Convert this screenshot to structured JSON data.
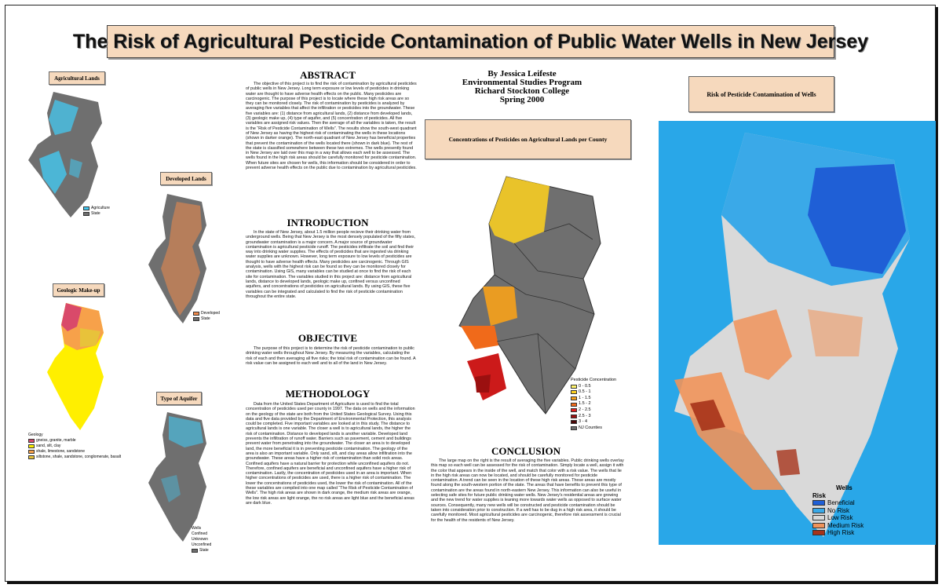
{
  "title": "The Risk of Agricultural Pesticide Contamination of Public Water Wells in New Jersey",
  "author": {
    "line1": "By Jessica Leifeste",
    "line2": "Environmental Studies Program",
    "line3": "Richard Stockton College",
    "line4": "Spring 2000"
  },
  "maps": {
    "agricultural": {
      "label": "Agricultural Lands",
      "legend": [
        "Agriculture",
        "State"
      ]
    },
    "developed": {
      "label": "Developed Lands",
      "legend": [
        "Developed",
        "State"
      ]
    },
    "geologic": {
      "label": "Geologic Make-up",
      "legend_title": "Geology",
      "legend": [
        "gneiss, granite, marble",
        "sand, silt, clay",
        "shale, limestone, sandstone",
        "siltstone, shale, sandstone, conglomerate, basalt"
      ]
    },
    "aquifer": {
      "label": "Type of Aquifer",
      "legend_title": "Wells",
      "legend": [
        "Confined",
        "Unknown",
        "Unconfined",
        "State"
      ]
    },
    "concentration": {
      "label": "Concentrations of Pesticides on Agricultural Lands per County",
      "legend_title": "Pesticide Concentration",
      "legend": [
        "0 - 0.5",
        "0.5 - 1",
        "1 - 1.5",
        "1.5 - 2",
        "2 - 2.5",
        "2.5 - 3",
        "3 - 4",
        "NJ Counties"
      ]
    },
    "risk": {
      "label": "Risk of Pesticide Contamination of Wells",
      "legend_wells": "Wells",
      "legend_title": "Risk",
      "legend": [
        "Beneficial",
        "No Risk",
        "Low Risk",
        "Medium Risk",
        "High Risk"
      ]
    }
  },
  "colors": {
    "state_gray": "#6f6f6f",
    "agri_cyan": "#44c8f0",
    "developed_orange": "#f08a4b",
    "beneficial": "#1f5fd6",
    "no_risk": "#3aa9e8",
    "low_risk": "#d9d9d9",
    "medium_risk": "#f0935a",
    "high_risk": "#a6331a",
    "label_bg": "#f6d9bd",
    "risk_bg": "#29a7e8"
  },
  "sections": {
    "abstract": {
      "heading": "ABSTRACT",
      "text": "The objective of this project is to find the risk of contamination by agricultural pesticides of public wells in New Jersey. Long term exposure or low levels of pesticides in drinking water are thought to have adverse health effects on the public. Many pesticides are carcinogenic. The purpose of this project is to locate where these high risk areas are so they can be monitored closely. The risk of contamination by pesticides is analyzed by averaging five variables that affect the infiltration or pesticides into the groundwater. These five variables are: (1) distance from agricultural lands, (2) distance from developed lands, (3) geologic make up, (4) type of aquifer, and (5) concentration of pesticides. All five variables are assigned risk values. Then the average of all the variables is taken, the result is the “Risk of Pesticide Contamination of Wells”. The results show the south-west quadrant of New Jersey as having the highest risk of contaminating the wells in these locations (shown in darker orange). The north-east quadrant of New Jersey has beneficial properties that prevent the contamination of the wells located there (shown in dark blue). The rest of the state is classified somewhere between these two extremes. The wells presently found in New Jersey are laid over this map in a way that allows each well to be assessed. The wells found in the high risk areas should be carefully monitored for pesticide contamination. When future sites are chosen for wells, this information should be considered in order to prevent adverse health effects on the public due to contamination by agricultural pesticides."
    },
    "introduction": {
      "heading": "INTRODUCTION",
      "text": "In the state of New Jersey, about 1.5 million people recieve their drinking water from underground wells. Being that New Jersey is the most densely populated of the fifty states, groundwater contamination is a major concern. A major source of groundwater contamination is agricultural pesticide runoff. The pesticides infiltrate the soil and find their way into drinking water supplies. The effects of pesticides that are ingested via drinking water supplies are unknown. However, long term exposure to low levels of pesticides are thought to have adverse health effects. Many pesticides are carcinogenic. Through GIS analysis, wells with the highest risk can be found so they can be monitored closely for contamination. Using GIS, many variables can be studied at once to find the risk of each site for contamination. The variables studied in this project are: distance from agricultural lands, distance to developed lands, geologic make up, confined versus unconfined aquifers, and concentrations of pesticides on agricultural lands. By using GIS, these five variables can be integrated and calculated to find the risk of pesticide contamination throughout the entire state."
    },
    "objective": {
      "heading": "OBJECTIVE",
      "text": "The purpose of this project is to determine the risk of pesticide contamination to public drinking water wells throughout New Jersey. By measuring the variables, calculating the risk of each and then averaging all five risks; the total risk of contamination can be found. A risk value can be assigned to each well and to all of the land in New Jersey."
    },
    "methodology": {
      "heading": "METHODOLOGY",
      "text": "Data from the United States Department of Agriculture is used to find the total concentration of pesticides used per county in 1997. The data on wells and the information on the geology of the state are both from the United States Geological Survey. Using this data and five data provided by the Department of Environmental Protection, this analysis could be completed. Five important variables are looked at in this study. The distance to agricultural lands is one variable. The closer a well is to agricultural lands, the higher the risk of contamination. Distance to developed lands is another variable. Developed land prevents the infiltration of runoff water. Barriers such as pavement, cement and buildings prevent water from penetrating into the groundwater. The closer an area is to developed land, the more beneficial it is in preventing pesticide contamination. The geology of the area is also an important variable. Only sand, silt, and clay areas allow infiltration into the groundwater. These areas have a higher risk of contamination than solid rock areas. Confined aquifers have a natural barrier for protection while unconfined aquifers do not. Therefore, confined aquifers are beneficial and unconfined aquifers have a higher risk of contamination. Lastly, the concentration of pesticides used in an area is important. When higher concentrations of pesticides are used, there is a higher risk of contamination. The lower the concentrations of pesticides used, the lower the risk of contamination. All of the these variables are compiled into one map called “The Risk of Pesticide Contamination of Wells”. The high risk areas are shown in dark orange, the medium risk areas are orange, the low risk areas are light orange, the no risk areas are light blue and the beneficial areas are dark blue."
    },
    "conclusion": {
      "heading": "CONCLUSION",
      "text": "The large map on the right is the result of averaging the five variables. Public drinking wells overlay this map so each well can be assessed for the risk of contamination. Simply locate a well, assign it with the color that appears in the inside of the well, and match that color with a risk value. The wells that lie in the high risk areas can now be located, and should be carefully monitored for pesticide contamination. A trend can be seen in the location of these high risk areas. These areas are mostly found along the south-western portion of the state. The areas that have benefits to prevent this type of contamination are the areas found in north-eastern New Jersey. This information can also be useful in selecting safe sites for future public drinking water wells. New Jersey's residential areas are growing and the new trend for water supplies is leaning more towards water wells as opposed to surface water sources. Consequently, many new wells will be constructed and pesticide contamination should be taken into consideration prior to construction. If a well has to be dug in a high risk area, it should be carefully monitored. Most agricultural pesticides are carcinogenic, therefore risk assessment is crucial for the health of the residents of New Jersey."
    }
  }
}
